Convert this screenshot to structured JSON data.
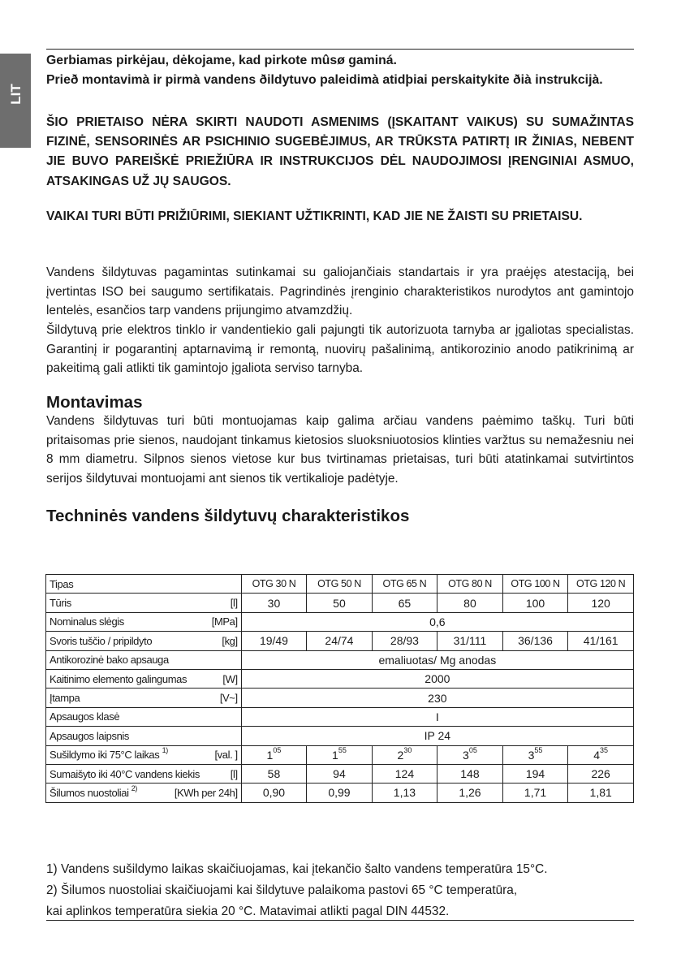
{
  "language_tab": "LIT",
  "intro": {
    "line1": "Gerbiamas pirkėjau, dėkojame, kad pirkote mûsø gaminá.",
    "line2": "Prieð montavimà ir pirmà vandens ðildytuvo paleidimà atidþiai perskaitykite ðià instrukcijà."
  },
  "warning1": "ŠIO PRIETAISO NĖRA SKIRTI NAUDOTI ASMENIMS (ĮSKAITANT VAIKUS) SU SUMAŽINTAS FIZINĖ, SENSORINĖS AR PSICHINIO SUGEBĖJIMUS, AR TRŪKSTA PATIRTĮ IR ŽINIAS, NEBENT JIE BUVO PAREIŠKĖ PRIEŽIŪRA IR INSTRUKCIJOS DĖL NAUDOJIMOSI ĮRENGINIAI ASMUO, ATSAKINGAS UŽ JŲ SAUGOS.",
  "warning2": "VAIKAI TURI BŪTI PRIŽIŪRIMI, SIEKIANT UŽTIKRINTI, KAD JIE NE ŽAISTI SU PRIETAISU.",
  "para1": "Vandens šildytuvas pagamintas sutinkamai su galiojančiais standartais ir yra praėjęs atestaciją, bei įvertintas ISO bei saugumo sertifikatais. Pagrindinės įrenginio charakteristikos nurodytos ant gamintojo lentelės, esančios tarp vandens prijungimo atvamzdžių.",
  "para2": "Šildytuvą prie elektros tinklo ir vandentiekio gali pajungti tik autorizuota tarnyba ar įgaliotas specialistas. Garantinį ir pogarantinį aptarnavimą ir remontą, nuovirų pašalinimą, antikorozinio anodo patikrinimą ar pakeitimą gali atlikti tik gamintojo įgaliota serviso tarnyba.",
  "montavimas": {
    "heading": "Montavimas",
    "text": "Vandens šildytuvas turi būti montuojamas kaip galima arčiau vandens paėmimo taškų. Turi būti pritaisomas prie sienos, naudojant tinkamus kietosios sluoksniuotosios klinties varžtus su nemažesniu nei 8 mm diametru. Silpnos sienos vietose kur bus tvirtinamas prietaisas, turi būti atatinkamai sutvirtintos serijos šildytuvai montuojami ant sienos tik vertikalioje padėtyje."
  },
  "tech": {
    "heading": "Techninės vandens šildytuvų charakteristikos",
    "header_label": "Tipas",
    "models": [
      "OTG 30 N",
      "OTG 50 N",
      "OTG 65 N",
      "OTG 80 N",
      "OTG 100 N",
      "OTG 120 N"
    ],
    "rows": [
      {
        "label": "Tūris",
        "unit": "[l]",
        "values": [
          "30",
          "50",
          "65",
          "80",
          "100",
          "120"
        ]
      },
      {
        "label": "Nominalus slėgis",
        "unit": "[MPa]",
        "merged": "0,6"
      },
      {
        "label": "Svoris tuščio / pripildyto",
        "unit": "[kg]",
        "values": [
          "19/49",
          "24/74",
          "28/93",
          "31/111",
          "36/136",
          "41/161"
        ]
      },
      {
        "label": "Antikorozinė bako apsauga",
        "unit": "",
        "merged": "emaliuotas/ Mg anodas"
      },
      {
        "label": "Kaitinimo elemento galingumas",
        "unit": "[W]",
        "merged": "2000"
      },
      {
        "label": "Įtampa",
        "unit": "[V~]",
        "merged": "230"
      },
      {
        "label": "Apsaugos klasė",
        "unit": "",
        "merged": "I"
      },
      {
        "label": "Apsaugos laipsnis",
        "unit": "",
        "merged": "IP 24"
      },
      {
        "label": "Sušildymo iki 75°C laikas",
        "note": "1)",
        "unit": "[val. ]",
        "values": [
          [
            "1",
            "05"
          ],
          [
            "1",
            "55"
          ],
          [
            "2",
            "30"
          ],
          [
            "3",
            "05"
          ],
          [
            "3",
            "55"
          ],
          [
            "4",
            "35"
          ]
        ]
      },
      {
        "label": "Sumaišyto iki 40°C vandens kiekis",
        "unit": "[l]",
        "values": [
          "58",
          "94",
          "124",
          "148",
          "194",
          "226"
        ]
      },
      {
        "label": "Šilumos nuostoliai",
        "note": "2)",
        "unit": "[KWh per 24h]",
        "values": [
          "0,90",
          "0,99",
          "1,13",
          "1,26",
          "1,71",
          "1,81"
        ]
      }
    ]
  },
  "footnotes": [
    "1) Vandens sušildymo laikas skaičiuojamas, kai įtekančio šalto vandens temperatūra 15°C.",
    "2) Šilumos nuostoliai skaičiuojami kai šildytuve palaikoma pastovi 65 °C temperatūra,",
    "kai aplinkos temperatūra siekia 20 °C. Matavimai atlikti pagal DIN 44532."
  ]
}
